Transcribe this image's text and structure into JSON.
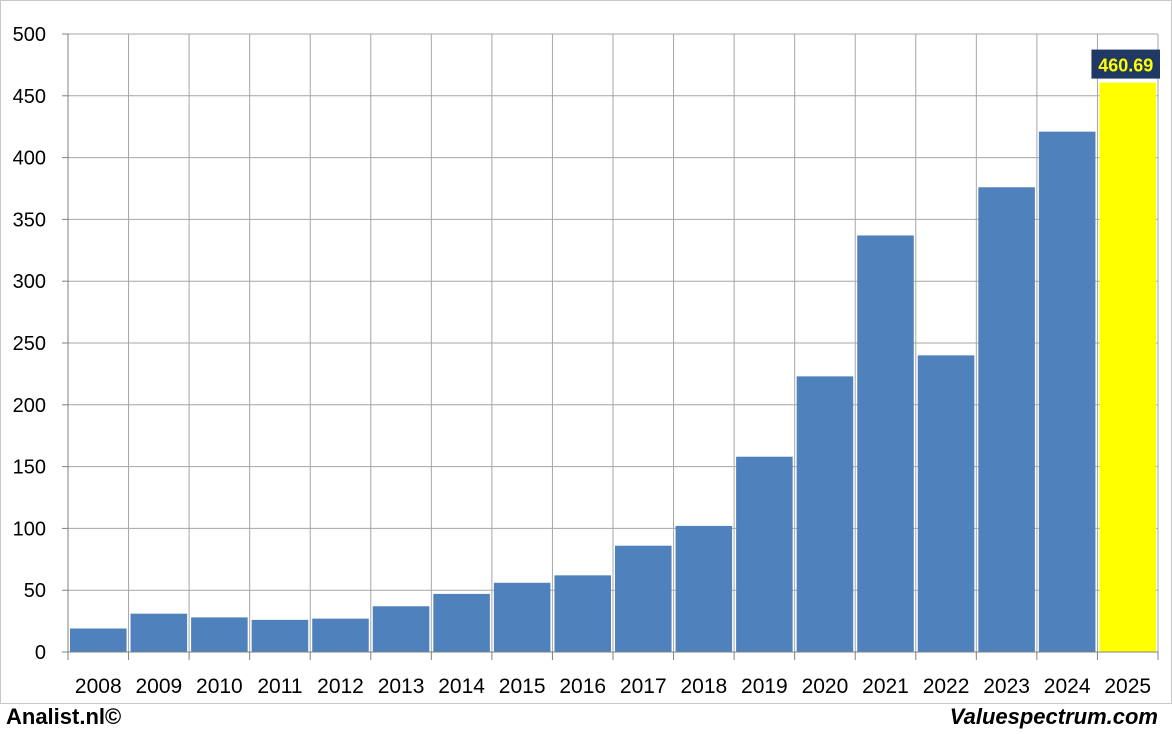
{
  "chart_data": {
    "type": "bar",
    "categories": [
      "2008",
      "2009",
      "2010",
      "2011",
      "2012",
      "2013",
      "2014",
      "2015",
      "2016",
      "2017",
      "2018",
      "2019",
      "2020",
      "2021",
      "2022",
      "2023",
      "2024",
      "2025"
    ],
    "values": [
      19,
      31,
      28,
      26,
      27,
      37,
      47,
      56,
      62,
      86,
      102,
      158,
      223,
      337,
      240,
      376,
      421,
      460.69
    ],
    "highlight_label": "460.69",
    "ylim": [
      0,
      500
    ],
    "yticks": [
      "0",
      "50",
      "100",
      "150",
      "200",
      "250",
      "300",
      "350",
      "400",
      "450",
      "500"
    ],
    "grid": true,
    "colors": {
      "bar": "#4f81bd",
      "highlight_bar": "#ffff00",
      "label_bg": "#1f3864",
      "label_text": "#ffff00",
      "grid": "#a6a6a6"
    }
  },
  "footer": {
    "left": "Analist.nl©",
    "right": "Valuespectrum.com"
  }
}
